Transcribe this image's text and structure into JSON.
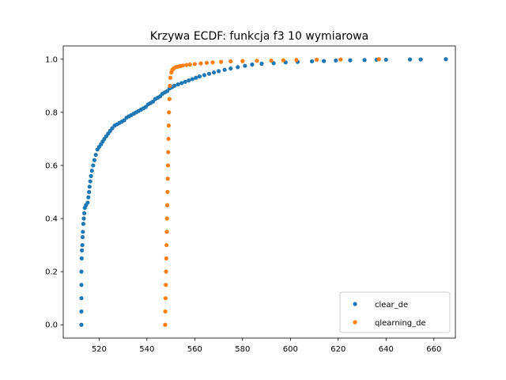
{
  "chart_data": {
    "type": "scatter",
    "title": "Krzywa ECDF: funkcja f3 10 wymiarowa",
    "xlabel": "",
    "ylabel": "",
    "xlim": [
      505,
      669
    ],
    "ylim": [
      -0.05,
      1.05
    ],
    "x_ticks": [
      520,
      540,
      560,
      580,
      600,
      620,
      640,
      660
    ],
    "y_ticks": [
      0.0,
      0.2,
      0.4,
      0.6,
      0.8,
      1.0
    ],
    "x_tick_labels": [
      "520",
      "540",
      "560",
      "580",
      "600",
      "620",
      "640",
      "660"
    ],
    "y_tick_labels": [
      "0.0",
      "0.2",
      "0.4",
      "0.6",
      "0.8",
      "1.0"
    ],
    "grid": false,
    "legend_position": "lower-right",
    "series": [
      {
        "name": "clear_de",
        "color": "#1f77b4",
        "points": [
          [
            512.6,
            0.0
          ],
          [
            512.6,
            0.05
          ],
          [
            512.6,
            0.1
          ],
          [
            512.6,
            0.15
          ],
          [
            512.6,
            0.2
          ],
          [
            512.7,
            0.25
          ],
          [
            512.8,
            0.28
          ],
          [
            513.0,
            0.3
          ],
          [
            513.1,
            0.33
          ],
          [
            513.2,
            0.35
          ],
          [
            513.4,
            0.38
          ],
          [
            513.6,
            0.4
          ],
          [
            513.8,
            0.42
          ],
          [
            514.0,
            0.44
          ],
          [
            514.5,
            0.45
          ],
          [
            515.2,
            0.46
          ],
          [
            515.5,
            0.48
          ],
          [
            515.8,
            0.5
          ],
          [
            516.0,
            0.52
          ],
          [
            516.3,
            0.54
          ],
          [
            516.6,
            0.56
          ],
          [
            517.0,
            0.58
          ],
          [
            517.5,
            0.6
          ],
          [
            518.0,
            0.62
          ],
          [
            518.6,
            0.64
          ],
          [
            519.3,
            0.66
          ],
          [
            520.0,
            0.67
          ],
          [
            520.8,
            0.68
          ],
          [
            521.5,
            0.69
          ],
          [
            522.2,
            0.7
          ],
          [
            523.0,
            0.71
          ],
          [
            523.8,
            0.72
          ],
          [
            524.6,
            0.73
          ],
          [
            525.5,
            0.74
          ],
          [
            526.5,
            0.75
          ],
          [
            527.5,
            0.755
          ],
          [
            528.5,
            0.76
          ],
          [
            529.5,
            0.765
          ],
          [
            530.5,
            0.77
          ],
          [
            531.5,
            0.78
          ],
          [
            532.5,
            0.785
          ],
          [
            533.5,
            0.79
          ],
          [
            534.5,
            0.795
          ],
          [
            535.5,
            0.8
          ],
          [
            536.5,
            0.805
          ],
          [
            537.5,
            0.81
          ],
          [
            538.5,
            0.815
          ],
          [
            539.5,
            0.82
          ],
          [
            540.5,
            0.83
          ],
          [
            541.5,
            0.835
          ],
          [
            542.5,
            0.84
          ],
          [
            543.5,
            0.85
          ],
          [
            544.5,
            0.855
          ],
          [
            545.5,
            0.86
          ],
          [
            546.5,
            0.87
          ],
          [
            547.5,
            0.875
          ],
          [
            548.5,
            0.88
          ],
          [
            549.5,
            0.89
          ],
          [
            550.5,
            0.895
          ],
          [
            551.5,
            0.9
          ],
          [
            553.0,
            0.905
          ],
          [
            554.5,
            0.91
          ],
          [
            556.0,
            0.915
          ],
          [
            557.5,
            0.92
          ],
          [
            559.0,
            0.925
          ],
          [
            560.5,
            0.93
          ],
          [
            562.0,
            0.935
          ],
          [
            564.0,
            0.94
          ],
          [
            566.0,
            0.945
          ],
          [
            568.0,
            0.95
          ],
          [
            570.0,
            0.955
          ],
          [
            572.5,
            0.96
          ],
          [
            575.0,
            0.965
          ],
          [
            578.0,
            0.97
          ],
          [
            581.0,
            0.975
          ],
          [
            584.0,
            0.98
          ],
          [
            588.0,
            0.983
          ],
          [
            593.0,
            0.985
          ],
          [
            598.0,
            0.988
          ],
          [
            603.0,
            0.99
          ],
          [
            609.0,
            0.992
          ],
          [
            614.0,
            0.993
          ],
          [
            619.0,
            0.995
          ],
          [
            625.0,
            0.996
          ],
          [
            631.0,
            0.997
          ],
          [
            636.0,
            0.998
          ],
          [
            640.0,
            0.998
          ],
          [
            650.0,
            0.999
          ],
          [
            654.5,
            0.999
          ],
          [
            665.0,
            1.0
          ]
        ]
      },
      {
        "name": "qlearning_de",
        "color": "#ff7f0e",
        "points": [
          [
            547.6,
            0.0
          ],
          [
            547.7,
            0.05
          ],
          [
            547.8,
            0.1
          ],
          [
            547.9,
            0.15
          ],
          [
            548.0,
            0.2
          ],
          [
            548.1,
            0.25
          ],
          [
            548.2,
            0.3
          ],
          [
            548.3,
            0.35
          ],
          [
            548.4,
            0.4
          ],
          [
            548.5,
            0.45
          ],
          [
            548.6,
            0.5
          ],
          [
            548.7,
            0.55
          ],
          [
            548.8,
            0.6
          ],
          [
            548.9,
            0.65
          ],
          [
            549.0,
            0.7
          ],
          [
            549.1,
            0.75
          ],
          [
            549.2,
            0.8
          ],
          [
            549.4,
            0.85
          ],
          [
            549.6,
            0.9
          ],
          [
            549.8,
            0.93
          ],
          [
            550.2,
            0.95
          ],
          [
            550.6,
            0.96
          ],
          [
            551.2,
            0.965
          ],
          [
            552.0,
            0.97
          ],
          [
            553.0,
            0.972
          ],
          [
            554.0,
            0.974
          ],
          [
            555.0,
            0.976
          ],
          [
            556.5,
            0.978
          ],
          [
            558.0,
            0.98
          ],
          [
            560.0,
            0.982
          ],
          [
            562.5,
            0.984
          ],
          [
            565.0,
            0.986
          ],
          [
            567.5,
            0.988
          ],
          [
            571.0,
            0.99
          ],
          [
            575.0,
            0.992
          ],
          [
            580.0,
            0.993
          ],
          [
            586.0,
            0.994
          ],
          [
            592.0,
            0.995
          ],
          [
            597.0,
            0.996
          ],
          [
            602.5,
            0.997
          ],
          [
            611.0,
            0.998
          ],
          [
            621.0,
            0.999
          ],
          [
            637.0,
            1.0
          ]
        ]
      }
    ]
  }
}
